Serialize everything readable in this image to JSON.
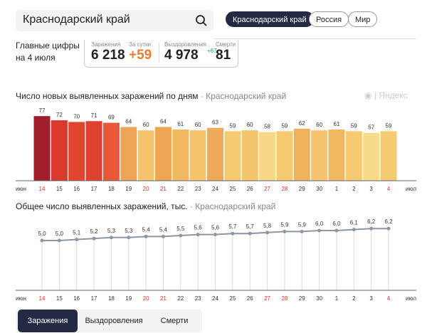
{
  "search": {
    "value": "Краснодарский край"
  },
  "region_pills": [
    {
      "label": "Краснодарский край",
      "active": true
    },
    {
      "label": "Россия",
      "active": false
    },
    {
      "label": "Мир",
      "active": false
    }
  ],
  "summary": {
    "label_line1": "Главные цифры",
    "label_line2": "на 4 июля",
    "infections_label": "Заражения",
    "infections_value": "6 218",
    "daily_label": "За сутки",
    "daily_value": "+59",
    "recoveries_label": "Выздоровления",
    "recoveries_value": "4 978",
    "recoveries_delta": "+67",
    "deaths_label": "Смерти",
    "deaths_value": "81",
    "colors": {
      "daily": "#f07b2d",
      "recoveries_delta": "#2aa36b"
    }
  },
  "brand": "Яндекс",
  "chart_data": [
    {
      "type": "bar",
      "title": "Число новых выявленных заражений по дням",
      "subtitle": "Краснодарский край",
      "categories": [
        "14",
        "15",
        "16",
        "17",
        "18",
        "19",
        "20",
        "21",
        "22",
        "23",
        "24",
        "25",
        "26",
        "27",
        "28",
        "29",
        "30",
        "1",
        "2",
        "3",
        "4"
      ],
      "values": [
        77,
        72,
        70,
        71,
        69,
        64,
        60,
        64,
        61,
        60,
        63,
        59,
        60,
        58,
        59,
        62,
        60,
        61,
        59,
        57,
        59
      ],
      "month_start": "июн",
      "month_end": "июл",
      "highlighted_categories": [
        "14",
        "20",
        "21",
        "27",
        "28",
        "4"
      ],
      "bar_colors": [
        "#a11f2d",
        "#d93a2d",
        "#e04532",
        "#de4130",
        "#e85839",
        "#eea455",
        "#f4c56c",
        "#eea455",
        "#f1b862",
        "#f4c56c",
        "#eeaa58",
        "#f5ca70",
        "#f4c56c",
        "#f7d886",
        "#f5ca70",
        "#f0b15d",
        "#f4c56c",
        "#f1b862",
        "#f5ca70",
        "#f8db8a",
        "#f5ca70"
      ]
    },
    {
      "type": "line",
      "title": "Общее число выявленных заражений, тыс.",
      "subtitle": "Краснодарский край",
      "categories": [
        "14",
        "15",
        "16",
        "17",
        "18",
        "19",
        "20",
        "21",
        "22",
        "23",
        "24",
        "25",
        "26",
        "27",
        "28",
        "29",
        "30",
        "1",
        "2",
        "3",
        "4"
      ],
      "values": [
        5.0,
        5.0,
        5.1,
        5.2,
        5.3,
        5.3,
        5.4,
        5.4,
        5.5,
        5.6,
        5.6,
        5.7,
        5.7,
        5.8,
        5.9,
        5.9,
        6.0,
        6.0,
        6.1,
        6.2,
        6.2
      ],
      "labels": [
        "5,0",
        "5,0",
        "5,1",
        "5,2",
        "5,3",
        "5,3",
        "5,4",
        "5,4",
        "5,5",
        "5,6",
        "5,6",
        "5,7",
        "5,7",
        "5,8",
        "5,9",
        "5,9",
        "6,0",
        "6,0",
        "6,1",
        "6,2",
        "6,2"
      ],
      "month_start": "июн",
      "month_end": "июл",
      "line_color": "#8e95a3"
    }
  ],
  "bottom_tabs": [
    {
      "label": "Заражения",
      "active": true
    },
    {
      "label": "Выздоровления",
      "active": false
    },
    {
      "label": "Смерти",
      "active": false
    }
  ]
}
